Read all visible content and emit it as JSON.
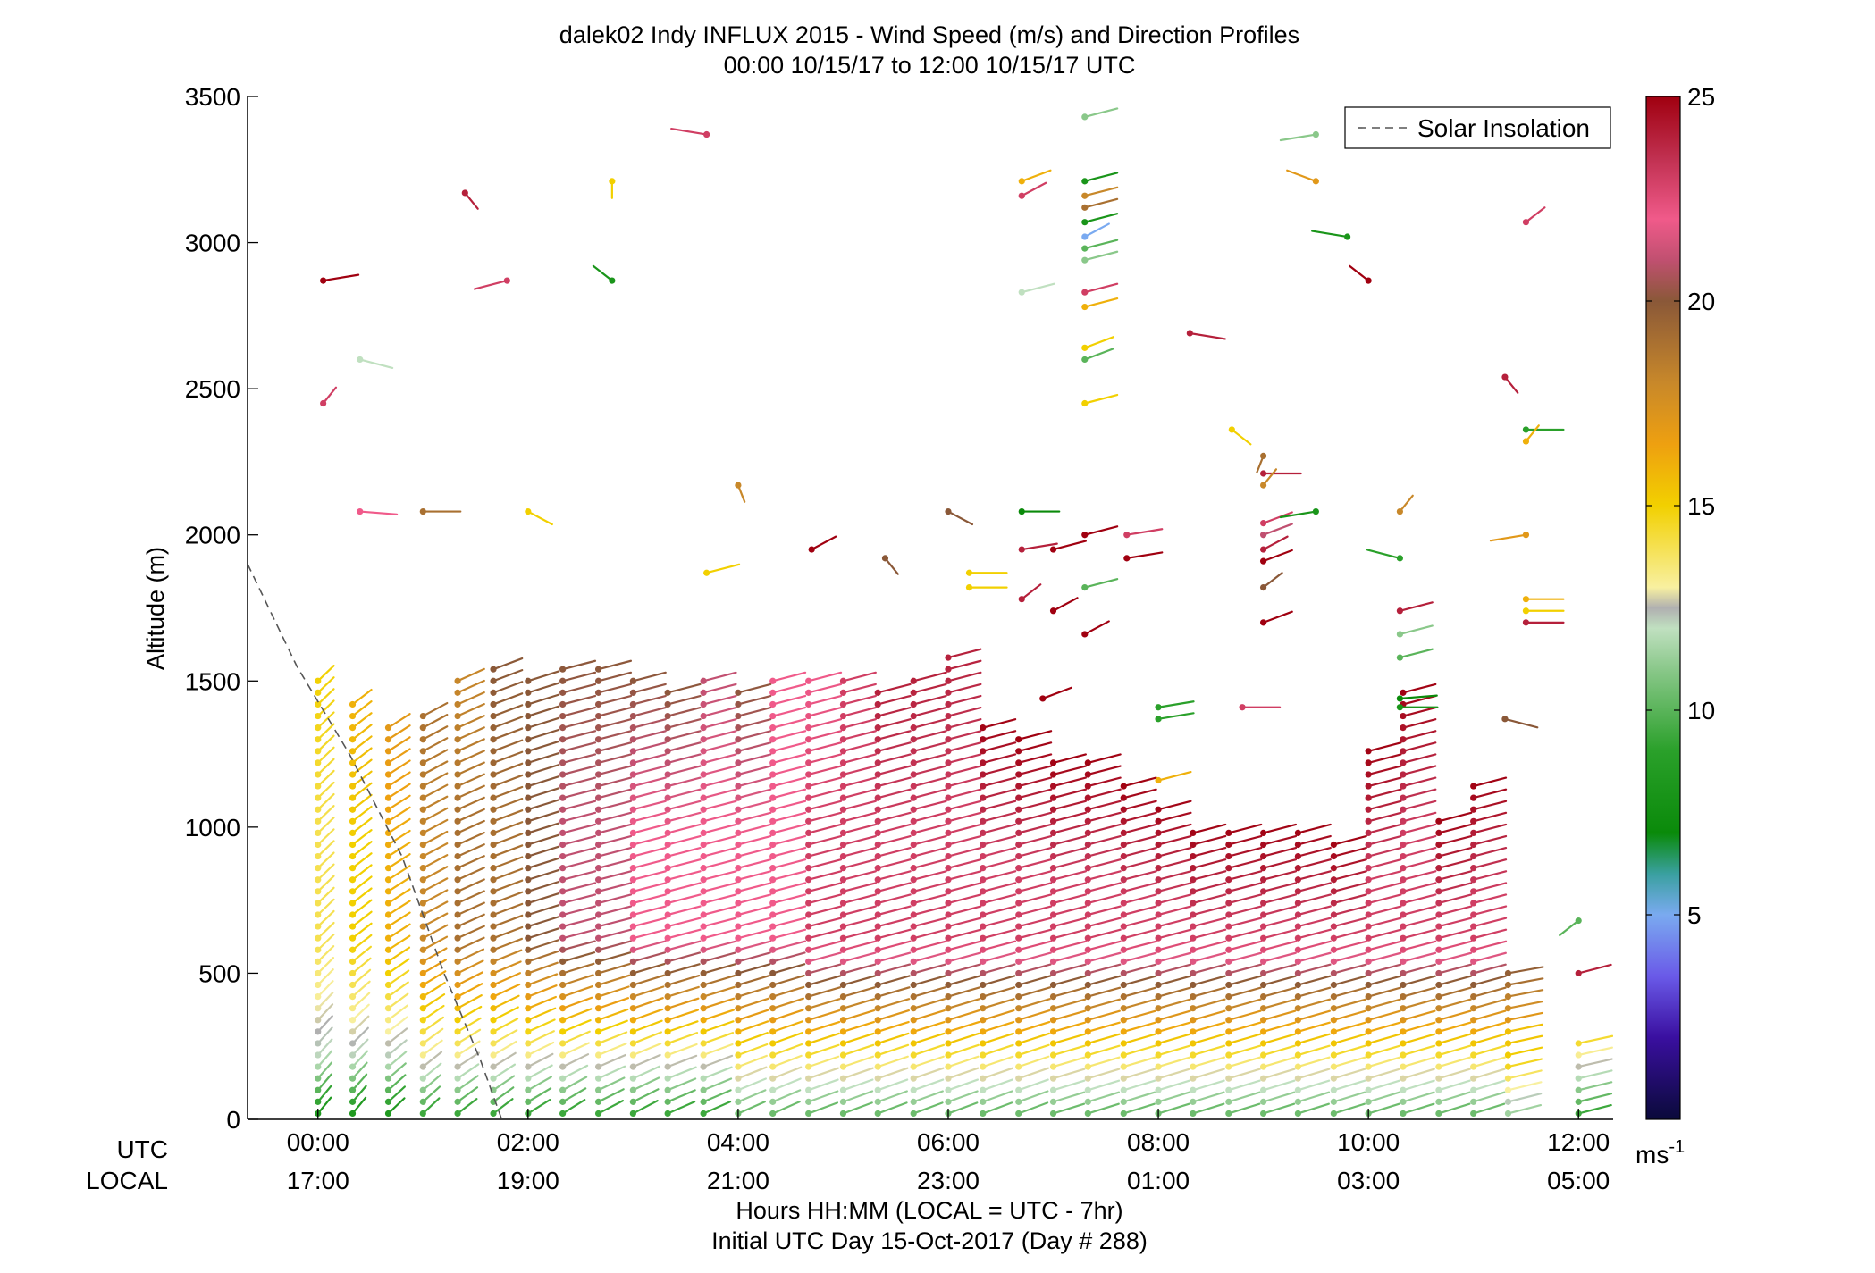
{
  "chart_data": {
    "type": "scatter",
    "title": "dalek02 Indy INFLUX 2015 - Wind Speed (m/s) and Direction Profiles",
    "subtitle": "00:00 10/15/17 to 12:00 10/15/17  UTC",
    "ylabel": "Altitude (m)",
    "xlabel_line1": "Hours HH:MM  (LOCAL = UTC - 7hr)",
    "xlabel_line2": "Initial UTC Day 15-Oct-2017 (Day # 288)",
    "ylim": [
      0,
      3500
    ],
    "xlim_hours": [
      -0.67,
      12.33
    ],
    "y_ticks": [
      "0",
      "500",
      "1000",
      "1500",
      "2000",
      "2500",
      "3000",
      "3500"
    ],
    "x_row_labels": {
      "utc": "UTC",
      "local": "LOCAL"
    },
    "x_ticks": [
      {
        "hour": 0,
        "utc": "00:00",
        "local": "17:00"
      },
      {
        "hour": 2,
        "utc": "02:00",
        "local": "19:00"
      },
      {
        "hour": 4,
        "utc": "04:00",
        "local": "21:00"
      },
      {
        "hour": 6,
        "utc": "06:00",
        "local": "23:00"
      },
      {
        "hour": 8,
        "utc": "08:00",
        "local": "01:00"
      },
      {
        "hour": 10,
        "utc": "10:00",
        "local": "03:00"
      },
      {
        "hour": 12,
        "utc": "12:00",
        "local": "05:00"
      }
    ],
    "legend": {
      "entry": "Solar Insolation",
      "placement": "top-right",
      "style": "dashed",
      "color": "#555555"
    },
    "colorbar": {
      "min": 0,
      "max": 25,
      "ticks": [
        "5",
        "10",
        "15",
        "20",
        "25"
      ],
      "unit_label": "ms",
      "unit_exp": "-1",
      "stops": [
        [
          0,
          "#0a0a3a"
        ],
        [
          2,
          "#3a0fa0"
        ],
        [
          3.5,
          "#6a5ae8"
        ],
        [
          5,
          "#7aaaf0"
        ],
        [
          6,
          "#3aa0a0"
        ],
        [
          7,
          "#0a8a0a"
        ],
        [
          9,
          "#2aa02a"
        ],
        [
          11,
          "#8ac88a"
        ],
        [
          12,
          "#c0e0c0"
        ],
        [
          12.5,
          "#b0b0b0"
        ],
        [
          13,
          "#f8f0a0"
        ],
        [
          15,
          "#f2d000"
        ],
        [
          16.5,
          "#eea010"
        ],
        [
          18,
          "#c8882a"
        ],
        [
          20,
          "#8a5838"
        ],
        [
          21,
          "#c05070"
        ],
        [
          22,
          "#f05a8a"
        ],
        [
          23.5,
          "#c03050"
        ],
        [
          25,
          "#a00010"
        ]
      ]
    },
    "solar_insolation": [
      {
        "hour": -0.67,
        "alt": 1900
      },
      {
        "hour": -0.2,
        "alt": 1550
      },
      {
        "hour": 0.3,
        "alt": 1250
      },
      {
        "hour": 0.8,
        "alt": 900
      },
      {
        "hour": 1.2,
        "alt": 500
      },
      {
        "hour": 1.55,
        "alt": 200
      },
      {
        "hour": 1.75,
        "alt": 0
      }
    ],
    "profiles": [
      {
        "hour": 0.0,
        "top": 1520,
        "dir_low": 200,
        "dir_high": 205,
        "speed_low": 8,
        "speed_mid": 14,
        "speed_high": 15
      },
      {
        "hour": 0.33,
        "top": 1440,
        "dir_low": 200,
        "dir_high": 210,
        "speed_low": 8,
        "speed_mid": 15,
        "speed_high": 16
      },
      {
        "hour": 0.67,
        "top": 1360,
        "dir_low": 205,
        "dir_high": 215,
        "speed_low": 8,
        "speed_mid": 16,
        "speed_high": 17
      },
      {
        "hour": 1.0,
        "top": 1410,
        "dir_low": 205,
        "dir_high": 220,
        "speed_low": 9,
        "speed_mid": 18,
        "speed_high": 19
      },
      {
        "hour": 1.33,
        "top": 1520,
        "dir_low": 210,
        "dir_high": 225,
        "speed_low": 9,
        "speed_mid": 19,
        "speed_high": 18
      },
      {
        "hour": 1.67,
        "top": 1560,
        "dir_low": 210,
        "dir_high": 230,
        "speed_low": 9,
        "speed_mid": 19,
        "speed_high": 20
      },
      {
        "hour": 2.0,
        "top": 1500,
        "dir_low": 215,
        "dir_high": 235,
        "speed_low": 9,
        "speed_mid": 20,
        "speed_high": 20
      },
      {
        "hour": 2.33,
        "top": 1570,
        "dir_low": 215,
        "dir_high": 240,
        "speed_low": 9,
        "speed_mid": 21,
        "speed_high": 20
      },
      {
        "hour": 2.67,
        "top": 1570,
        "dir_low": 220,
        "dir_high": 240,
        "speed_low": 9,
        "speed_mid": 21,
        "speed_high": 20
      },
      {
        "hour": 3.0,
        "top": 1520,
        "dir_low": 220,
        "dir_high": 240,
        "speed_low": 9,
        "speed_mid": 22,
        "speed_high": 20
      },
      {
        "hour": 3.33,
        "top": 1480,
        "dir_low": 225,
        "dir_high": 240,
        "speed_low": 9,
        "speed_mid": 22,
        "speed_high": 20
      },
      {
        "hour": 3.67,
        "top": 1520,
        "dir_low": 225,
        "dir_high": 240,
        "speed_low": 9,
        "speed_mid": 22,
        "speed_high": 21
      },
      {
        "hour": 4.0,
        "top": 1490,
        "dir_low": 225,
        "dir_high": 240,
        "speed_low": 10,
        "speed_mid": 22,
        "speed_high": 20
      },
      {
        "hour": 4.33,
        "top": 1500,
        "dir_low": 225,
        "dir_high": 240,
        "speed_low": 10,
        "speed_mid": 22,
        "speed_high": 22
      },
      {
        "hour": 4.67,
        "top": 1520,
        "dir_low": 230,
        "dir_high": 240,
        "speed_low": 10,
        "speed_mid": 23,
        "speed_high": 22
      },
      {
        "hour": 5.0,
        "top": 1520,
        "dir_low": 230,
        "dir_high": 240,
        "speed_low": 10,
        "speed_mid": 23,
        "speed_high": 23
      },
      {
        "hour": 5.33,
        "top": 1480,
        "dir_low": 230,
        "dir_high": 240,
        "speed_low": 10,
        "speed_mid": 23,
        "speed_high": 24
      },
      {
        "hour": 5.67,
        "top": 1520,
        "dir_low": 230,
        "dir_high": 240,
        "speed_low": 10,
        "speed_mid": 23,
        "speed_high": 24
      },
      {
        "hour": 6.0,
        "top": 1600,
        "dir_low": 230,
        "dir_high": 240,
        "speed_low": 10,
        "speed_mid": 23,
        "speed_high": 24
      },
      {
        "hour": 6.33,
        "top": 1370,
        "dir_low": 230,
        "dir_high": 240,
        "speed_low": 10,
        "speed_mid": 23,
        "speed_high": 25
      },
      {
        "hour": 6.67,
        "top": 1300,
        "dir_low": 230,
        "dir_high": 240,
        "speed_low": 10,
        "speed_mid": 23,
        "speed_high": 25
      },
      {
        "hour": 7.0,
        "top": 1240,
        "dir_low": 235,
        "dir_high": 240,
        "speed_low": 10,
        "speed_mid": 23,
        "speed_high": 25
      },
      {
        "hour": 7.33,
        "top": 1240,
        "dir_low": 235,
        "dir_high": 240,
        "speed_low": 10,
        "speed_mid": 23,
        "speed_high": 25
      },
      {
        "hour": 7.67,
        "top": 1150,
        "dir_low": 235,
        "dir_high": 240,
        "speed_low": 10,
        "speed_mid": 23,
        "speed_high": 25
      },
      {
        "hour": 8.0,
        "top": 1090,
        "dir_low": 235,
        "dir_high": 240,
        "speed_low": 10,
        "speed_mid": 23,
        "speed_high": 25
      },
      {
        "hour": 8.33,
        "top": 1000,
        "dir_low": 235,
        "dir_high": 240,
        "speed_low": 10,
        "speed_mid": 23,
        "speed_high": 25
      },
      {
        "hour": 8.67,
        "top": 1000,
        "dir_low": 235,
        "dir_high": 240,
        "speed_low": 10,
        "speed_mid": 23,
        "speed_high": 25
      },
      {
        "hour": 9.0,
        "top": 1000,
        "dir_low": 235,
        "dir_high": 240,
        "speed_low": 10,
        "speed_mid": 23,
        "speed_high": 25
      },
      {
        "hour": 9.33,
        "top": 1000,
        "dir_low": 235,
        "dir_high": 240,
        "speed_low": 10,
        "speed_mid": 23,
        "speed_high": 25
      },
      {
        "hour": 9.67,
        "top": 960,
        "dir_low": 235,
        "dir_high": 240,
        "speed_low": 10,
        "speed_mid": 23,
        "speed_high": 25
      },
      {
        "hour": 10.0,
        "top": 1280,
        "dir_low": 235,
        "dir_high": 240,
        "speed_low": 10,
        "speed_mid": 23,
        "speed_high": 25
      },
      {
        "hour": 10.33,
        "top": 1480,
        "dir_low": 235,
        "dir_high": 240,
        "speed_low": 10,
        "speed_mid": 23,
        "speed_high": 25
      },
      {
        "hour": 10.67,
        "top": 1040,
        "dir_low": 235,
        "dir_high": 240,
        "speed_low": 10,
        "speed_mid": 23,
        "speed_high": 25
      },
      {
        "hour": 11.0,
        "top": 1160,
        "dir_low": 235,
        "dir_high": 240,
        "speed_low": 10,
        "speed_mid": 23,
        "speed_high": 25
      },
      {
        "hour": 11.33,
        "top": 520,
        "dir_low": 240,
        "dir_high": 250,
        "speed_low": 11,
        "speed_mid": 17,
        "speed_high": 20
      },
      {
        "hour": 12.0,
        "top": 280,
        "dir_low": 240,
        "dir_high": 250,
        "speed_low": 9,
        "speed_mid": 12,
        "speed_high": 15
      }
    ],
    "upper_points": [
      {
        "hour": 0.05,
        "alt": 2870,
        "dir": 250,
        "speed": 25
      },
      {
        "hour": 0.05,
        "alt": 2450,
        "dir": 200,
        "speed": 23
      },
      {
        "hour": 0.4,
        "alt": 2080,
        "dir": 280,
        "speed": 22
      },
      {
        "hour": 0.4,
        "alt": 2600,
        "dir": 300,
        "speed": 12
      },
      {
        "hour": 1.0,
        "alt": 2080,
        "dir": 270,
        "speed": 19
      },
      {
        "hour": 1.4,
        "alt": 3170,
        "dir": 340,
        "speed": 24
      },
      {
        "hour": 1.8,
        "alt": 2870,
        "dir": 60,
        "speed": 23
      },
      {
        "hour": 2.0,
        "alt": 2080,
        "dir": 320,
        "speed": 15
      },
      {
        "hour": 2.8,
        "alt": 3210,
        "dir": 0,
        "speed": 15
      },
      {
        "hour": 2.8,
        "alt": 2870,
        "dir": 150,
        "speed": 8
      },
      {
        "hour": 3.7,
        "alt": 3370,
        "dir": 110,
        "speed": 23
      },
      {
        "hour": 4.0,
        "alt": 2170,
        "dir": 350,
        "speed": 18
      },
      {
        "hour": 3.7,
        "alt": 1870,
        "dir": 240,
        "speed": 15
      },
      {
        "hour": 4.7,
        "alt": 1950,
        "dir": 220,
        "speed": 25
      },
      {
        "hour": 5.4,
        "alt": 1920,
        "dir": 340,
        "speed": 20
      },
      {
        "hour": 6.7,
        "alt": 3210,
        "dir": 230,
        "speed": 16
      },
      {
        "hour": 6.7,
        "alt": 3160,
        "dir": 220,
        "speed": 23
      },
      {
        "hour": 6.7,
        "alt": 2830,
        "dir": 240,
        "speed": 12
      },
      {
        "hour": 6.0,
        "alt": 2080,
        "dir": 320,
        "speed": 20
      },
      {
        "hour": 6.7,
        "alt": 2080,
        "dir": 270,
        "speed": 7
      },
      {
        "hour": 6.2,
        "alt": 1870,
        "dir": 270,
        "speed": 15
      },
      {
        "hour": 6.2,
        "alt": 1820,
        "dir": 270,
        "speed": 15
      },
      {
        "hour": 6.7,
        "alt": 1950,
        "dir": 250,
        "speed": 24
      },
      {
        "hour": 6.7,
        "alt": 1780,
        "dir": 210,
        "speed": 24
      },
      {
        "hour": 7.0,
        "alt": 1950,
        "dir": 240,
        "speed": 25
      },
      {
        "hour": 7.0,
        "alt": 1740,
        "dir": 220,
        "speed": 25
      },
      {
        "hour": 6.9,
        "alt": 1440,
        "dir": 230,
        "speed": 25
      },
      {
        "hour": 7.3,
        "alt": 3430,
        "dir": 240,
        "speed": 11
      },
      {
        "hour": 7.3,
        "alt": 3210,
        "dir": 240,
        "speed": 8
      },
      {
        "hour": 7.3,
        "alt": 3160,
        "dir": 240,
        "speed": 18
      },
      {
        "hour": 7.3,
        "alt": 3120,
        "dir": 240,
        "speed": 19
      },
      {
        "hour": 7.3,
        "alt": 3070,
        "dir": 240,
        "speed": 8
      },
      {
        "hour": 7.3,
        "alt": 3020,
        "dir": 220,
        "speed": 5
      },
      {
        "hour": 7.3,
        "alt": 2980,
        "dir": 240,
        "speed": 10
      },
      {
        "hour": 7.3,
        "alt": 2940,
        "dir": 240,
        "speed": 11
      },
      {
        "hour": 7.3,
        "alt": 2830,
        "dir": 240,
        "speed": 23
      },
      {
        "hour": 7.3,
        "alt": 2780,
        "dir": 240,
        "speed": 16
      },
      {
        "hour": 7.3,
        "alt": 2640,
        "dir": 230,
        "speed": 15
      },
      {
        "hour": 7.3,
        "alt": 2600,
        "dir": 230,
        "speed": 10
      },
      {
        "hour": 7.3,
        "alt": 2450,
        "dir": 240,
        "speed": 15
      },
      {
        "hour": 7.3,
        "alt": 2000,
        "dir": 240,
        "speed": 25
      },
      {
        "hour": 7.3,
        "alt": 1820,
        "dir": 240,
        "speed": 10
      },
      {
        "hour": 7.3,
        "alt": 1660,
        "dir": 220,
        "speed": 25
      },
      {
        "hour": 7.7,
        "alt": 2000,
        "dir": 250,
        "speed": 23
      },
      {
        "hour": 7.7,
        "alt": 1920,
        "dir": 250,
        "speed": 25
      },
      {
        "hour": 8.3,
        "alt": 2690,
        "dir": 290,
        "speed": 24
      },
      {
        "hour": 8.0,
        "alt": 1410,
        "dir": 250,
        "speed": 9
      },
      {
        "hour": 8.0,
        "alt": 1370,
        "dir": 250,
        "speed": 9
      },
      {
        "hour": 8.0,
        "alt": 1160,
        "dir": 240,
        "speed": 16
      },
      {
        "hour": 8.7,
        "alt": 2360,
        "dir": 330,
        "speed": 15
      },
      {
        "hour": 9.0,
        "alt": 2270,
        "dir": 10,
        "speed": 19
      },
      {
        "hour": 9.0,
        "alt": 2210,
        "dir": 270,
        "speed": 24
      },
      {
        "hour": 9.0,
        "alt": 2170,
        "dir": 200,
        "speed": 18
      },
      {
        "hour": 9.0,
        "alt": 2040,
        "dir": 230,
        "speed": 23
      },
      {
        "hour": 9.0,
        "alt": 2000,
        "dir": 230,
        "speed": 21
      },
      {
        "hour": 9.0,
        "alt": 1950,
        "dir": 220,
        "speed": 24
      },
      {
        "hour": 9.0,
        "alt": 1910,
        "dir": 230,
        "speed": 25
      },
      {
        "hour": 9.0,
        "alt": 1820,
        "dir": 210,
        "speed": 20
      },
      {
        "hour": 9.0,
        "alt": 1700,
        "dir": 230,
        "speed": 25
      },
      {
        "hour": 8.8,
        "alt": 1410,
        "dir": 270,
        "speed": 23
      },
      {
        "hour": 9.5,
        "alt": 3370,
        "dir": 70,
        "speed": 11
      },
      {
        "hour": 9.5,
        "alt": 3210,
        "dir": 130,
        "speed": 17
      },
      {
        "hour": 9.8,
        "alt": 3020,
        "dir": 110,
        "speed": 8
      },
      {
        "hour": 10.0,
        "alt": 2870,
        "dir": 150,
        "speed": 25
      },
      {
        "hour": 9.5,
        "alt": 2080,
        "dir": 70,
        "speed": 8
      },
      {
        "hour": 10.3,
        "alt": 2080,
        "dir": 200,
        "speed": 18
      },
      {
        "hour": 10.3,
        "alt": 1920,
        "dir": 120,
        "speed": 9
      },
      {
        "hour": 10.3,
        "alt": 1740,
        "dir": 240,
        "speed": 24
      },
      {
        "hour": 10.3,
        "alt": 1660,
        "dir": 240,
        "speed": 11
      },
      {
        "hour": 10.3,
        "alt": 1580,
        "dir": 240,
        "speed": 10
      },
      {
        "hour": 10.3,
        "alt": 1440,
        "dir": 260,
        "speed": 7
      },
      {
        "hour": 10.3,
        "alt": 1410,
        "dir": 270,
        "speed": 8
      },
      {
        "hour": 11.5,
        "alt": 3070,
        "dir": 210,
        "speed": 23
      },
      {
        "hour": 11.3,
        "alt": 2540,
        "dir": 340,
        "speed": 24
      },
      {
        "hour": 11.5,
        "alt": 2360,
        "dir": 270,
        "speed": 9
      },
      {
        "hour": 11.5,
        "alt": 2320,
        "dir": 200,
        "speed": 16
      },
      {
        "hour": 11.5,
        "alt": 2000,
        "dir": 70,
        "speed": 17
      },
      {
        "hour": 11.5,
        "alt": 1780,
        "dir": 270,
        "speed": 16
      },
      {
        "hour": 11.5,
        "alt": 1740,
        "dir": 270,
        "speed": 15
      },
      {
        "hour": 11.5,
        "alt": 1700,
        "dir": 270,
        "speed": 24
      },
      {
        "hour": 11.3,
        "alt": 1370,
        "dir": 300,
        "speed": 20
      },
      {
        "hour": 12.0,
        "alt": 680,
        "dir": 30,
        "speed": 10
      },
      {
        "hour": 12.0,
        "alt": 500,
        "dir": 240,
        "speed": 24
      }
    ]
  }
}
